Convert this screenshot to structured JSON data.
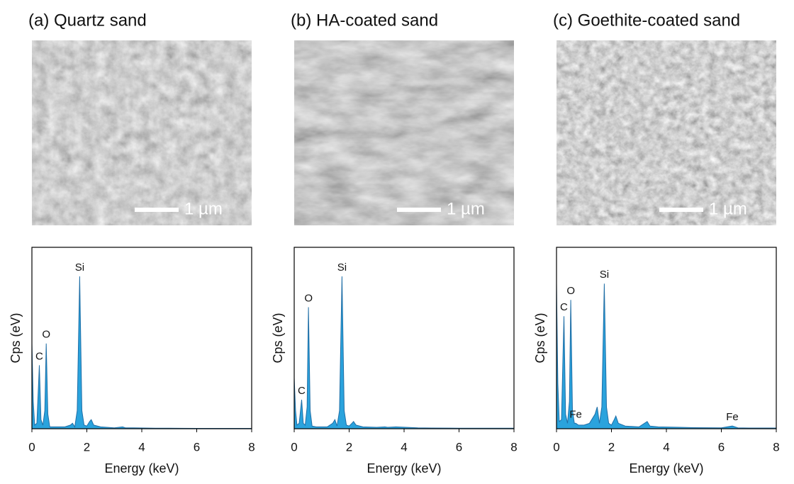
{
  "chart_data": [
    {
      "type": "area",
      "title": "(a) Quartz sand",
      "scale_bar_label": "1 µm",
      "x_label": "Energy (keV)",
      "y_label": "Cps (eV)",
      "xlim": [
        0,
        8
      ],
      "xticks": [
        0,
        2,
        4,
        6,
        8
      ],
      "ylim": [
        0,
        100
      ],
      "series": [
        {
          "color": "#2aa3dd",
          "x": [
            0,
            0.05,
            0.1,
            0.18,
            0.27,
            0.33,
            0.4,
            0.47,
            0.52,
            0.58,
            0.65,
            0.8,
            1.0,
            1.2,
            1.4,
            1.48,
            1.56,
            1.65,
            1.74,
            1.82,
            1.9,
            2.0,
            2.1,
            2.16,
            2.25,
            2.5,
            3.0,
            3.3,
            3.4,
            3.7,
            4.5,
            5.0,
            6.0,
            6.4,
            6.6,
            7.0,
            8.0
          ],
          "values": [
            47,
            15,
            2,
            3,
            35,
            5,
            2,
            10,
            47,
            8,
            1,
            1,
            1,
            1,
            2,
            3,
            1,
            10,
            84,
            10,
            2,
            1.5,
            4,
            5,
            2,
            1,
            0.5,
            1,
            0.5,
            0.5,
            0.3,
            0.3,
            0.2,
            0.2,
            0.2,
            0.2,
            0.2
          ]
        }
      ],
      "annotations": [
        {
          "text": "Si",
          "x": 1.74
        },
        {
          "text": "C",
          "x": 0.27
        },
        {
          "text": "O",
          "x": 0.52
        }
      ]
    },
    {
      "type": "area",
      "title": "(b) HA-coated sand",
      "scale_bar_label": "1 µm",
      "x_label": "Energy (keV)",
      "y_label": "Cps (eV)",
      "xlim": [
        0,
        8
      ],
      "xticks": [
        0,
        2,
        4,
        6,
        8
      ],
      "ylim": [
        0,
        100
      ],
      "series": [
        {
          "color": "#2aa3dd",
          "x": [
            0,
            0.05,
            0.1,
            0.18,
            0.27,
            0.33,
            0.4,
            0.47,
            0.52,
            0.58,
            0.65,
            0.8,
            1.0,
            1.2,
            1.4,
            1.48,
            1.56,
            1.65,
            1.74,
            1.82,
            1.9,
            2.0,
            2.1,
            2.16,
            2.25,
            2.5,
            3.0,
            3.3,
            3.4,
            3.7,
            4.5,
            5.0,
            6.0,
            6.4,
            6.6,
            7.0,
            8.0
          ],
          "values": [
            28,
            10,
            2,
            3,
            16,
            3,
            2,
            12,
            67,
            10,
            1.5,
            1,
            1,
            1,
            3,
            5,
            1.5,
            10,
            84,
            10,
            2,
            1.5,
            3,
            4,
            2,
            1,
            0.8,
            1,
            0.8,
            1,
            0.5,
            0.4,
            0.3,
            0.3,
            0.3,
            0.3,
            0.3
          ]
        }
      ],
      "annotations": [
        {
          "text": "Si",
          "x": 1.74
        },
        {
          "text": "C",
          "x": 0.27
        },
        {
          "text": "O",
          "x": 0.52
        }
      ]
    },
    {
      "type": "area",
      "title": "(c) Goethite-coated sand",
      "scale_bar_label": "1 µm",
      "x_label": "Energy (keV)",
      "y_label": "Cps (eV)",
      "xlim": [
        0,
        8
      ],
      "xticks": [
        0,
        2,
        4,
        6,
        8
      ],
      "ylim": [
        0,
        100
      ],
      "series": [
        {
          "color": "#2aa3dd",
          "x": [
            0,
            0.05,
            0.1,
            0.18,
            0.27,
            0.33,
            0.4,
            0.47,
            0.52,
            0.58,
            0.65,
            0.7,
            0.8,
            1.0,
            1.2,
            1.4,
            1.48,
            1.56,
            1.65,
            1.74,
            1.82,
            1.9,
            2.0,
            2.1,
            2.16,
            2.25,
            2.5,
            3.0,
            3.3,
            3.4,
            3.7,
            4.5,
            5.0,
            6.0,
            6.4,
            6.6,
            7.0,
            8.0
          ],
          "values": [
            80,
            25,
            4,
            5,
            62,
            8,
            3,
            15,
            71,
            10,
            3,
            3,
            2,
            2,
            3,
            8,
            12,
            3,
            12,
            80,
            12,
            3,
            2,
            5,
            7,
            3,
            1.5,
            1,
            4,
            1.5,
            1,
            0.8,
            0.6,
            0.5,
            1.5,
            0.5,
            0.4,
            0.4
          ]
        }
      ],
      "annotations": [
        {
          "text": "Si",
          "x": 1.74
        },
        {
          "text": "C",
          "x": 0.27
        },
        {
          "text": "O",
          "x": 0.52
        },
        {
          "text": "Fe",
          "x": 0.7
        },
        {
          "text": "Fe",
          "x": 6.4
        }
      ]
    }
  ]
}
